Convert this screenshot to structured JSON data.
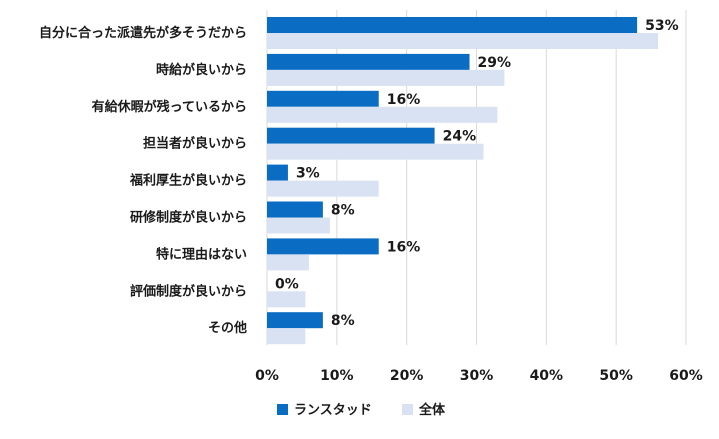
{
  "chart_data": {
    "type": "bar",
    "orientation": "horizontal",
    "categories": [
      "自分に合った派遣先が多そうだから",
      "時給が良いから",
      "有給休暇が残っているから",
      "担当者が良いから",
      "福利厚生が良いから",
      "研修制度が良いから",
      "特に理由はない",
      "評価制度が良いから",
      "その他"
    ],
    "series": [
      {
        "name": "ランスタッド",
        "values": [
          53,
          29,
          16,
          24,
          3,
          8,
          16,
          0,
          8
        ],
        "color": "#0a6cc2",
        "data_labels": [
          "53%",
          "29%",
          "16%",
          "24%",
          "3%",
          "8%",
          "16%",
          "0%",
          "8%"
        ]
      },
      {
        "name": "全体",
        "values": [
          56,
          34,
          33,
          31,
          16,
          9,
          6,
          5.5,
          5.5
        ],
        "color": "#d9e2f3"
      }
    ],
    "xlim": [
      0,
      60
    ],
    "xticks": [
      "0%",
      "10%",
      "20%",
      "30%",
      "40%",
      "50%",
      "60%"
    ],
    "grid": "vertical",
    "legend": "bottom-center"
  }
}
